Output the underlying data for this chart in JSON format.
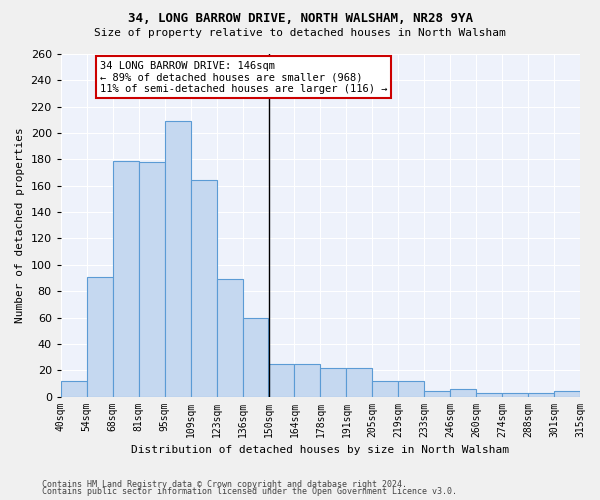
{
  "title1": "34, LONG BARROW DRIVE, NORTH WALSHAM, NR28 9YA",
  "title2": "Size of property relative to detached houses in North Walsham",
  "xlabel": "Distribution of detached houses by size in North Walsham",
  "ylabel": "Number of detached properties",
  "bar_color": "#c5d8f0",
  "bar_edge_color": "#5b9bd5",
  "background_color": "#eef2fb",
  "grid_color": "#ffffff",
  "tick_labels": [
    "40sqm",
    "54sqm",
    "68sqm",
    "81sqm",
    "95sqm",
    "109sqm",
    "123sqm",
    "136sqm",
    "150sqm",
    "164sqm",
    "178sqm",
    "191sqm",
    "205sqm",
    "219sqm",
    "233sqm",
    "246sqm",
    "260sqm",
    "274sqm",
    "288sqm",
    "301sqm",
    "315sqm"
  ],
  "values": [
    12,
    91,
    179,
    178,
    209,
    164,
    89,
    60,
    25,
    25,
    22,
    22,
    12,
    12,
    4,
    6,
    3,
    3,
    3,
    4
  ],
  "vline_x": 7.5,
  "annotation_text": "34 LONG BARROW DRIVE: 146sqm\n← 89% of detached houses are smaller (968)\n11% of semi-detached houses are larger (116) →",
  "annotation_box_color": "#ffffff",
  "annotation_box_edge_color": "#cc0000",
  "ylim": [
    0,
    260
  ],
  "yticks": [
    0,
    20,
    40,
    60,
    80,
    100,
    120,
    140,
    160,
    180,
    200,
    220,
    240,
    260
  ],
  "footer1": "Contains HM Land Registry data © Crown copyright and database right 2024.",
  "footer2": "Contains public sector information licensed under the Open Government Licence v3.0.",
  "fig_facecolor": "#f0f0f0"
}
